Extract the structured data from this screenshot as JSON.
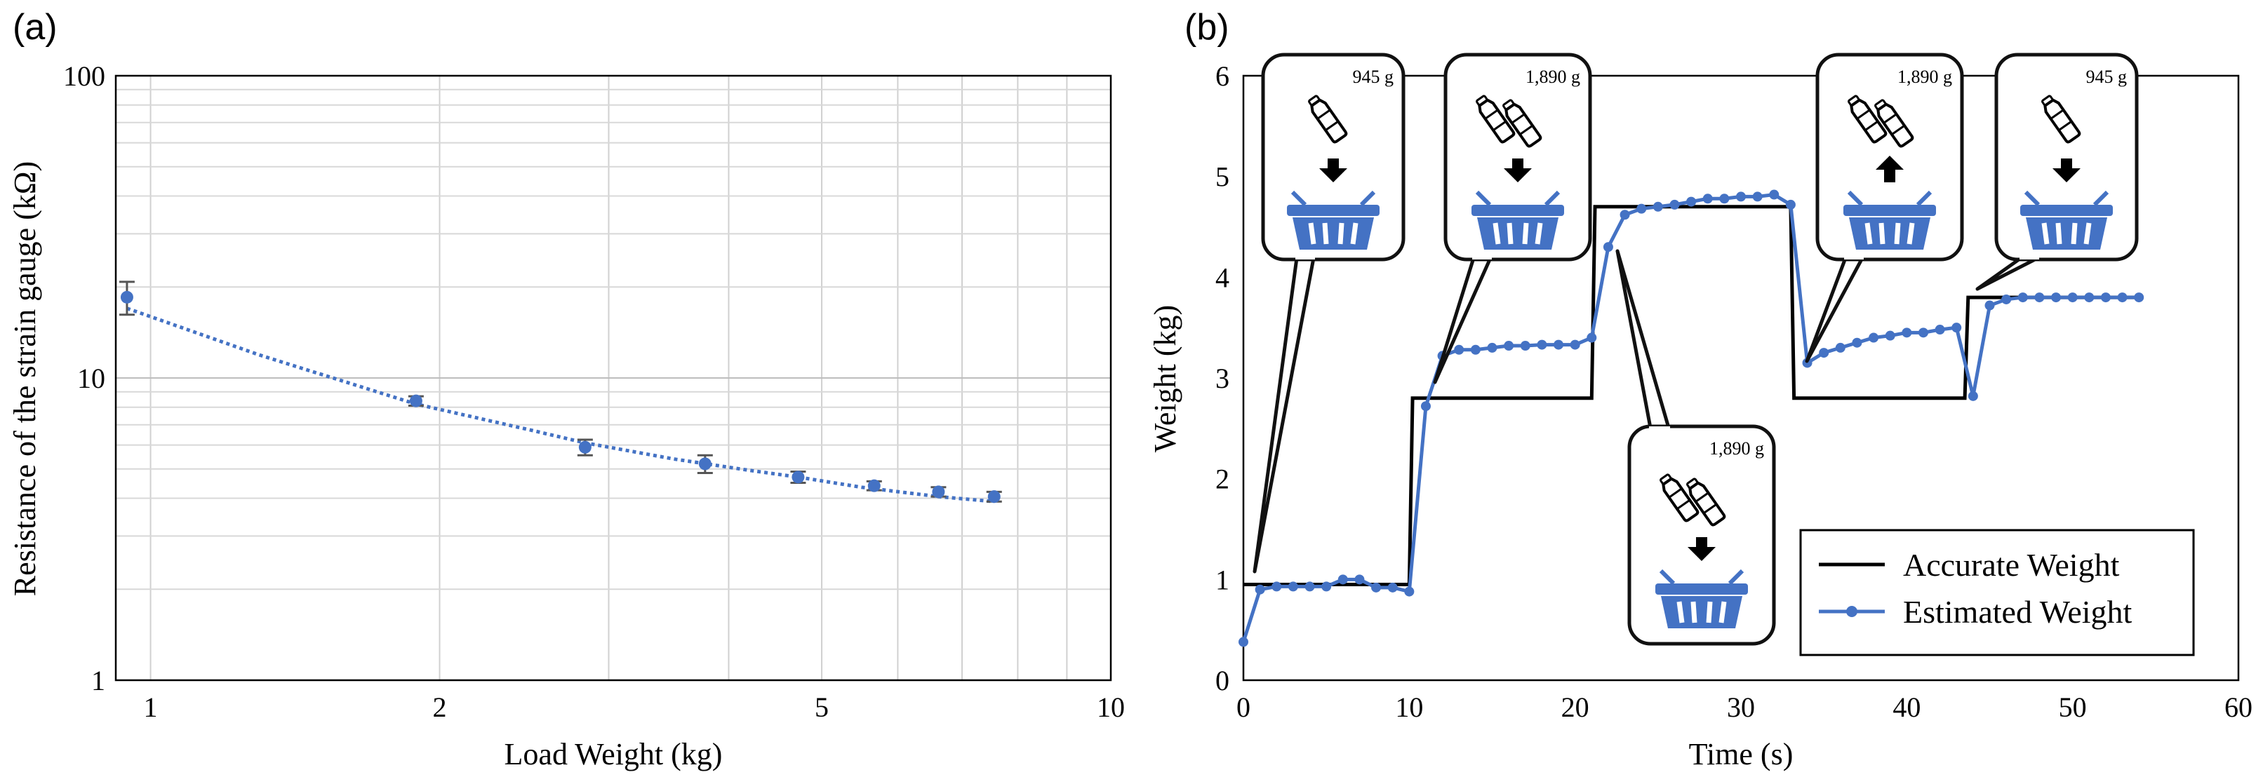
{
  "chart_data": [
    {
      "panel": "(a)",
      "type": "scatter",
      "xscale": "log",
      "yscale": "log",
      "xlabel": "Load Weight (kg)",
      "ylabel": "Resistance of the strain gauge  (kΩ)",
      "xlim": [
        0.92,
        10
      ],
      "ylim": [
        1,
        100
      ],
      "xticks": [
        1,
        2,
        5,
        10
      ],
      "yticks": [
        1,
        10,
        100
      ],
      "grid": true,
      "points": {
        "x": [
          0.945,
          1.89,
          2.835,
          3.78,
          4.725,
          5.67,
          6.615,
          7.56
        ],
        "y": [
          18.5,
          8.4,
          5.9,
          5.2,
          4.7,
          4.4,
          4.2,
          4.05
        ],
        "err": [
          2.3,
          0.3,
          0.35,
          0.35,
          0.2,
          0.15,
          0.15,
          0.15
        ]
      },
      "trendline": {
        "x": [
          0.945,
          1.3,
          1.89,
          2.5,
          2.835,
          3.5,
          4.2,
          4.725,
          5.5,
          6.615,
          7.56
        ],
        "y": [
          17.0,
          11.9,
          8.2,
          6.7,
          6.1,
          5.4,
          4.95,
          4.7,
          4.35,
          4.05,
          3.9
        ]
      },
      "color": "#4472C4"
    },
    {
      "panel": "(b)",
      "type": "line",
      "xlabel": "Time (s)",
      "ylabel": "Weight (kg)",
      "xlim": [
        0,
        60
      ],
      "ylim": [
        0,
        6
      ],
      "xticks": [
        0,
        10,
        20,
        30,
        40,
        50,
        60
      ],
      "yticks": [
        0,
        1,
        2,
        3,
        4,
        5,
        6
      ],
      "legend_position": "bottom-right",
      "series": [
        {
          "name": "Accurate Weight",
          "color": "#000000",
          "x": [
            0,
            10,
            10.2,
            21,
            21.2,
            33,
            33.2,
            43.5,
            43.7,
            54
          ],
          "y": [
            0.95,
            0.95,
            2.8,
            2.8,
            4.7,
            4.7,
            2.8,
            2.8,
            3.8,
            3.8
          ]
        },
        {
          "name": "Estimated Weight",
          "color": "#4472C4",
          "x": [
            0,
            1,
            2,
            3,
            4,
            5,
            6,
            7,
            8,
            9,
            10,
            11,
            12,
            13,
            14,
            15,
            16,
            17,
            18,
            19,
            20,
            21,
            22,
            23,
            24,
            25,
            26,
            27,
            28,
            29,
            30,
            31,
            32,
            33,
            34,
            35,
            36,
            37,
            38,
            39,
            40,
            41,
            42,
            43,
            44,
            45,
            46,
            47,
            48,
            49,
            50,
            51,
            52,
            53,
            54
          ],
          "y": [
            0.38,
            0.9,
            0.93,
            0.93,
            0.93,
            0.93,
            1.0,
            1.0,
            0.92,
            0.92,
            0.88,
            2.72,
            3.22,
            3.28,
            3.28,
            3.3,
            3.32,
            3.32,
            3.33,
            3.33,
            3.33,
            3.4,
            4.3,
            4.62,
            4.68,
            4.7,
            4.72,
            4.75,
            4.78,
            4.78,
            4.8,
            4.8,
            4.82,
            4.72,
            3.15,
            3.25,
            3.3,
            3.35,
            3.4,
            3.42,
            3.45,
            3.45,
            3.48,
            3.5,
            2.82,
            3.72,
            3.78,
            3.8,
            3.8,
            3.8,
            3.8,
            3.8,
            3.8,
            3.8,
            3.8
          ]
        }
      ],
      "callouts": [
        {
          "label": "945 g",
          "action": "add",
          "bottles": 1
        },
        {
          "label": "1,890 g",
          "action": "add",
          "bottles": 2
        },
        {
          "label": "1,890 g",
          "action": "add",
          "bottles": 2
        },
        {
          "label": "1,890 g",
          "action": "remove",
          "bottles": 2
        },
        {
          "label": "945 g",
          "action": "add",
          "bottles": 1
        }
      ]
    }
  ]
}
